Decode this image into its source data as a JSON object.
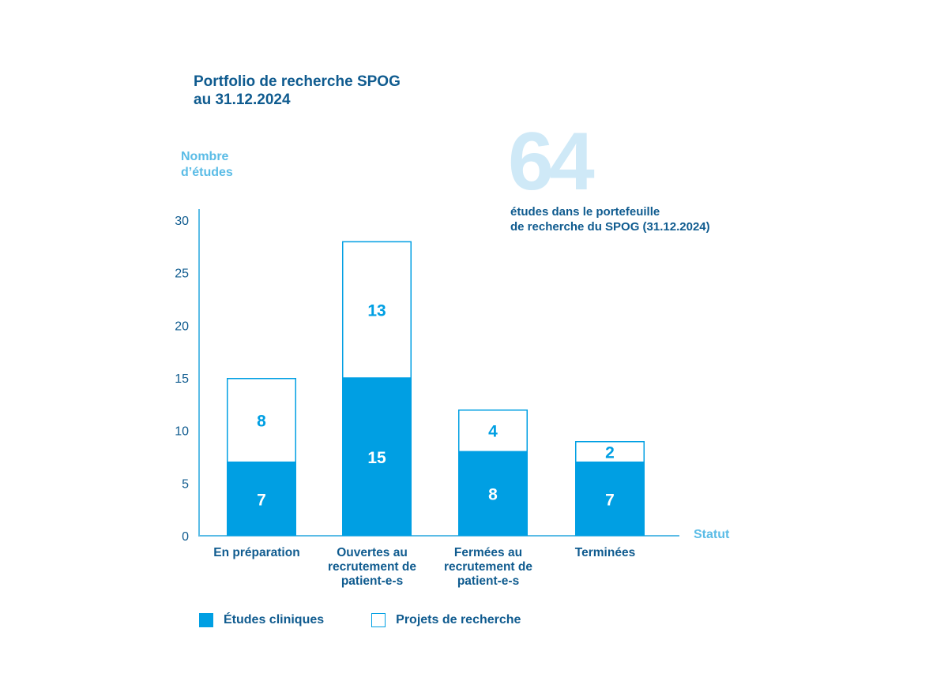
{
  "chart_data": {
    "type": "bar",
    "stacked": true,
    "title": "Portfolio de recherche SPOG",
    "subtitle": "au 31.12.2024",
    "ylabel_lines": [
      "Nombre",
      "d’études"
    ],
    "xlabel": "Statut",
    "ylim": [
      0,
      30
    ],
    "yticks": [
      0,
      5,
      10,
      15,
      20,
      25,
      30
    ],
    "categories": [
      [
        "En préparation"
      ],
      [
        "Ouvertes au",
        "recrutement de",
        "patient-e-s"
      ],
      [
        "Fermées au",
        "recrutement de",
        "patient-e-s"
      ],
      [
        "Terminées"
      ]
    ],
    "series": [
      {
        "name": "Études cliniques",
        "values": [
          7,
          15,
          8,
          7
        ],
        "color": "#009fe3",
        "style": "filled"
      },
      {
        "name": "Projets de recherche",
        "values": [
          8,
          13,
          4,
          2
        ],
        "color": "#009fe3",
        "style": "outline"
      }
    ],
    "highlight": {
      "number": "64",
      "caption_lines": [
        "études dans le portefeuille",
        "de recherche du SPOG (31.12.2024)"
      ]
    },
    "colors": {
      "title": "#0f5b8f",
      "axis": "#5bbce6",
      "big_number": "#cfe9f7",
      "bar": "#009fe3"
    }
  }
}
